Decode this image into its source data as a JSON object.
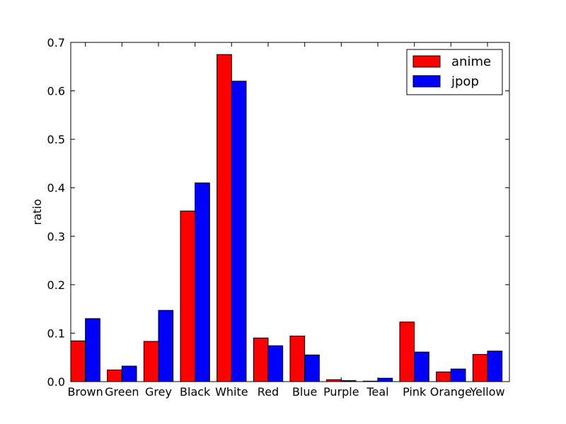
{
  "chart_data": {
    "type": "bar",
    "title": "",
    "xlabel": "",
    "ylabel": "ratio",
    "ylim": [
      0,
      0.7
    ],
    "yticks": [
      "0.0",
      "0.1",
      "0.2",
      "0.3",
      "0.4",
      "0.5",
      "0.6",
      "0.7"
    ],
    "grid": false,
    "legend_position": "top-right",
    "categories": [
      "Brown",
      "Green",
      "Grey",
      "Black",
      "White",
      "Red",
      "Blue",
      "Purple",
      "Teal",
      "Pink",
      "Orange",
      "Yellow"
    ],
    "series": [
      {
        "name": "anime",
        "color": "#ff0000",
        "values": [
          0.084,
          0.024,
          0.083,
          0.352,
          0.675,
          0.09,
          0.094,
          0.004,
          0.001,
          0.123,
          0.02,
          0.056
        ]
      },
      {
        "name": "jpop",
        "color": "#0000ff",
        "values": [
          0.13,
          0.032,
          0.147,
          0.41,
          0.62,
          0.074,
          0.055,
          0.002,
          0.007,
          0.061,
          0.026,
          0.063
        ]
      }
    ]
  }
}
